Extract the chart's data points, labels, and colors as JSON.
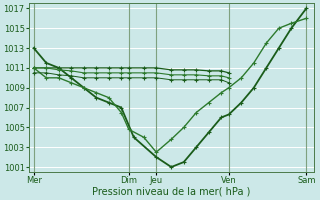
{
  "background_color": "#cce8e8",
  "grid_color": "#b0d8d8",
  "line_color_dark": "#1a5c1a",
  "xlabel": "Pression niveau de la mer( hPa )",
  "xtick_labels": [
    "Mer",
    "Dim",
    "Jeu",
    "Ven",
    "Sam"
  ],
  "xtick_positions": [
    0,
    3.8,
    4.9,
    7.8,
    10.9
  ],
  "ytick_min": 1001,
  "ytick_max": 1017,
  "ytick_step": 2,
  "series": [
    {
      "x": [
        0,
        0.5,
        1.0,
        1.5,
        2.0,
        2.5,
        3.0,
        3.5,
        4.0,
        4.9,
        5.5,
        6.0,
        6.5,
        7.0,
        7.5,
        7.8,
        8.3,
        8.8,
        9.3,
        9.8,
        10.3,
        10.9
      ],
      "y": [
        1013,
        1011.5,
        1011,
        1010,
        1009,
        1008,
        1007.5,
        1007,
        1004,
        1002,
        1001,
        1001.5,
        1003,
        1004.5,
        1006,
        1006.3,
        1007.5,
        1009,
        1011,
        1013,
        1015,
        1017
      ],
      "color": "#1a5c1a",
      "lw": 1.3,
      "marker": "+",
      "ms": 3.5
    },
    {
      "x": [
        0,
        0.5,
        1.0,
        1.5,
        2.0,
        2.5,
        3.0,
        3.5,
        3.8,
        4.4,
        4.9,
        5.5,
        6.0,
        6.5,
        7.0,
        7.5,
        7.8,
        8.3,
        8.8,
        9.3,
        9.8,
        10.3,
        10.9
      ],
      "y": [
        1011,
        1010,
        1010,
        1009.5,
        1009,
        1008.5,
        1008,
        1006.5,
        1004.8,
        1004,
        1002.5,
        1003.8,
        1005,
        1006.5,
        1007.5,
        1008.5,
        1009,
        1010,
        1011.5,
        1013.5,
        1015,
        1015.5,
        1016
      ],
      "color": "#2d7a2d",
      "lw": 1.0,
      "marker": "+",
      "ms": 3.0
    },
    {
      "x": [
        0,
        0.5,
        1.0,
        1.5,
        2.0,
        2.5,
        3.0,
        3.5,
        3.8,
        4.4,
        4.9,
        5.5,
        6.0,
        6.5,
        7.0,
        7.5,
        7.8
      ],
      "y": [
        1011,
        1011,
        1011,
        1011,
        1011,
        1011,
        1011,
        1011,
        1011,
        1011,
        1011,
        1010.8,
        1010.8,
        1010.8,
        1010.7,
        1010.7,
        1010.5
      ],
      "color": "#1a5c1a",
      "lw": 0.9,
      "marker": "+",
      "ms": 2.5
    },
    {
      "x": [
        0,
        0.5,
        1.0,
        1.5,
        2.0,
        2.5,
        3.0,
        3.5,
        3.8,
        4.4,
        4.9,
        5.5,
        6.0,
        6.5,
        7.0,
        7.5,
        7.8
      ],
      "y": [
        1011,
        1011,
        1010.8,
        1010.7,
        1010.5,
        1010.5,
        1010.5,
        1010.5,
        1010.5,
        1010.5,
        1010.5,
        1010.3,
        1010.3,
        1010.3,
        1010.2,
        1010.2,
        1010.0
      ],
      "color": "#2d7a2d",
      "lw": 0.8,
      "marker": "+",
      "ms": 2.5
    },
    {
      "x": [
        0,
        0.5,
        1.0,
        1.5,
        2.0,
        2.5,
        3.0,
        3.5,
        3.8,
        4.4,
        4.9,
        5.5,
        6.0,
        6.5,
        7.0,
        7.5,
        7.8
      ],
      "y": [
        1010.5,
        1010.5,
        1010.3,
        1010.2,
        1010.0,
        1010.0,
        1010.0,
        1010.0,
        1010.0,
        1010.0,
        1010.0,
        1009.8,
        1009.8,
        1009.8,
        1009.8,
        1009.8,
        1009.5
      ],
      "color": "#1a5c1a",
      "lw": 0.7,
      "marker": "+",
      "ms": 2.5
    }
  ],
  "vline_positions": [
    0,
    3.8,
    4.9,
    7.8,
    10.9
  ],
  "vline_color": "#4a7a4a",
  "ylim": [
    1000.5,
    1017.5
  ],
  "xlim": [
    -0.2,
    11.2
  ]
}
